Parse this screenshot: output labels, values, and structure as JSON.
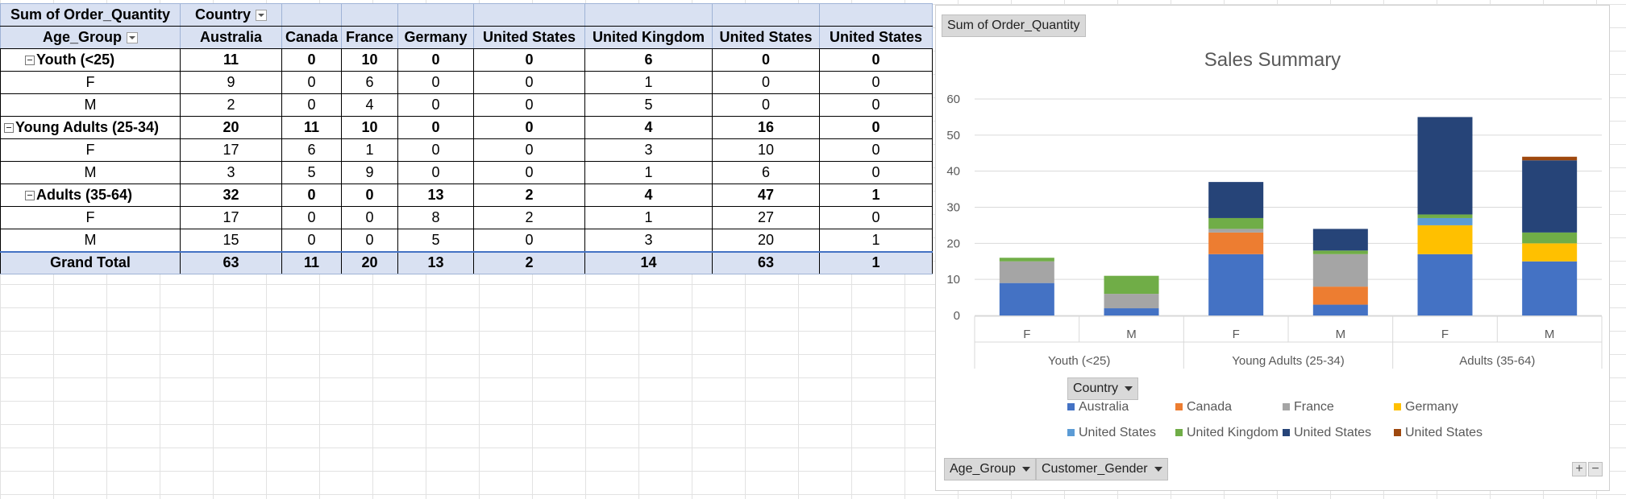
{
  "pivot": {
    "corner_label": "Sum of Order_Quantity",
    "col_field_label": "Country",
    "row_field_label": "Age_Group",
    "countries": [
      "Australia",
      "Canada",
      "France",
      "Germany",
      "United  States",
      "United Kingdom",
      "United States",
      "United States"
    ],
    "rows": [
      {
        "label": "Youth (<25)",
        "type": "group",
        "values": [
          11,
          0,
          10,
          0,
          0,
          6,
          0,
          0
        ]
      },
      {
        "label": "F",
        "type": "item",
        "values": [
          9,
          0,
          6,
          0,
          0,
          1,
          0,
          0
        ]
      },
      {
        "label": "M",
        "type": "item",
        "values": [
          2,
          0,
          4,
          0,
          0,
          5,
          0,
          0
        ]
      },
      {
        "label": "Young Adults (25-34)",
        "type": "group",
        "values": [
          20,
          11,
          10,
          0,
          0,
          4,
          16,
          0
        ]
      },
      {
        "label": "F",
        "type": "item",
        "values": [
          17,
          6,
          1,
          0,
          0,
          3,
          10,
          0
        ]
      },
      {
        "label": "M",
        "type": "item",
        "values": [
          3,
          5,
          9,
          0,
          0,
          1,
          6,
          0
        ]
      },
      {
        "label": "Adults (35-64)",
        "type": "group",
        "values": [
          32,
          0,
          0,
          13,
          2,
          4,
          47,
          1
        ]
      },
      {
        "label": "F",
        "type": "item",
        "values": [
          17,
          0,
          0,
          8,
          2,
          1,
          27,
          0
        ]
      },
      {
        "label": "M",
        "type": "item",
        "values": [
          15,
          0,
          0,
          5,
          0,
          3,
          20,
          1
        ]
      }
    ],
    "grand_total": {
      "label": "Grand Total",
      "values": [
        63,
        11,
        20,
        13,
        2,
        14,
        63,
        1
      ]
    }
  },
  "chart": {
    "field_button_values": "Sum of Order_Quantity",
    "field_button_legend": "Country",
    "field_button_axis_1": "Age_Group",
    "field_button_axis_2": "Customer_Gender",
    "zoom_in": "+",
    "zoom_out": "−"
  },
  "chart_data": {
    "type": "bar",
    "stacked": true,
    "title": "Sales Summary",
    "categories": [
      "F",
      "M",
      "F",
      "M",
      "F",
      "M"
    ],
    "category_groups": [
      {
        "label": "Youth (<25)",
        "span": 2
      },
      {
        "label": "Young Adults (25-34)",
        "span": 2
      },
      {
        "label": "Adults (35-64)",
        "span": 2
      }
    ],
    "ylim": [
      0,
      60
    ],
    "yticks": [
      0,
      10,
      20,
      30,
      40,
      50,
      60
    ],
    "grid": true,
    "legend_position": "bottom",
    "series": [
      {
        "name": "Australia",
        "color": "#4472c4",
        "values": [
          9,
          2,
          17,
          3,
          17,
          15
        ]
      },
      {
        "name": "Canada",
        "color": "#ed7d31",
        "values": [
          0,
          0,
          6,
          5,
          0,
          0
        ]
      },
      {
        "name": "France",
        "color": "#a5a5a5",
        "values": [
          6,
          4,
          1,
          9,
          0,
          0
        ]
      },
      {
        "name": "Germany",
        "color": "#ffc000",
        "values": [
          0,
          0,
          0,
          0,
          8,
          5
        ]
      },
      {
        "name": "United  States",
        "color": "#5b9bd5",
        "values": [
          0,
          0,
          0,
          0,
          2,
          0
        ]
      },
      {
        "name": "United Kingdom",
        "color": "#70ad47",
        "values": [
          1,
          5,
          3,
          1,
          1,
          3
        ]
      },
      {
        "name": "United States",
        "color": "#264478",
        "values": [
          0,
          0,
          10,
          6,
          27,
          20
        ]
      },
      {
        "name": "United States",
        "color": "#9e480e",
        "values": [
          0,
          0,
          0,
          0,
          0,
          1
        ]
      }
    ]
  }
}
